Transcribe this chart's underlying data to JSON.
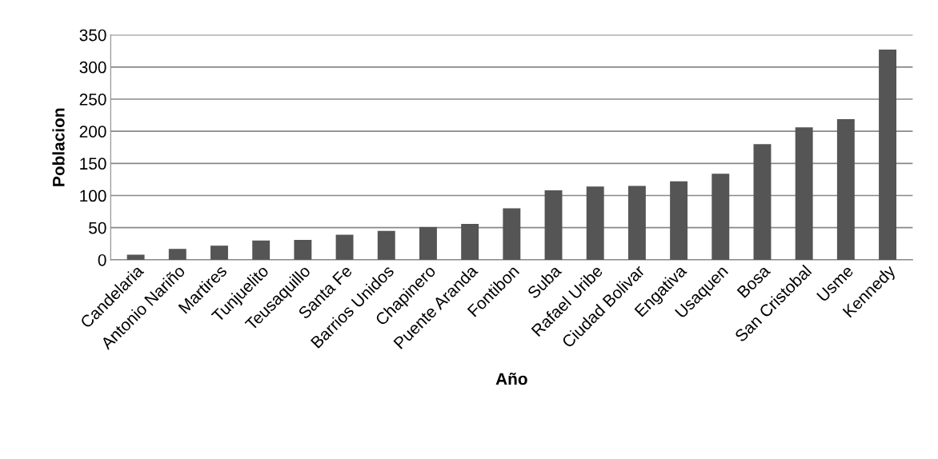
{
  "chart_data": {
    "type": "bar",
    "xlabel": "Año",
    "ylabel": "Poblacion",
    "categories": [
      "Candelaria",
      "Antonio Nariño",
      "Martires",
      "Tunjuelito",
      "Teusaquillo",
      "Santa Fe",
      "Barrios Unidos",
      "Chapinero",
      "Puente Aranda",
      "Fontibon",
      "Suba",
      "Rafael Uribe",
      "Ciudad Bolivar",
      "Engativa",
      "Usaquen",
      "Bosa",
      "San Cristobal",
      "Usme",
      "Kennedy"
    ],
    "values": [
      8,
      17,
      22,
      30,
      31,
      39,
      45,
      51,
      56,
      80,
      108,
      114,
      115,
      122,
      134,
      180,
      206,
      219,
      327
    ],
    "color": "#555555",
    "ylim": [
      0,
      350
    ],
    "yticks": [
      0,
      50,
      100,
      150,
      200,
      250,
      300,
      350
    ],
    "grid": "y",
    "legend": false
  }
}
